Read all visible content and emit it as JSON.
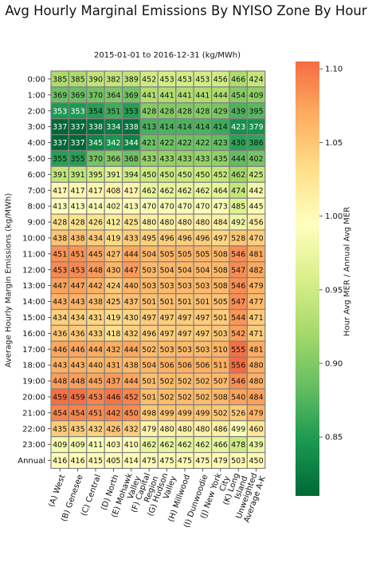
{
  "chart_data": {
    "type": "heatmap",
    "title": "Avg Hourly Marginal Emissions By NYISO Zone By Hour",
    "subtitle": "2015-01-01 to 2016-12-31 (kg/MWh)",
    "ylabel": "Average Hourly Margin Emissions (kg/MWh)",
    "colorbar_label": "Hour Avg MER / Annual Avg MER",
    "colorbar_ticks": [
      "0.85",
      "0.90",
      "0.95",
      "1.00",
      "1.05",
      "1.10"
    ],
    "colorbar_range": [
      0.81,
      1.105
    ],
    "colormap": [
      "#006837",
      "#1a9850",
      "#66bd63",
      "#a6d96a",
      "#d9ef8b",
      "#ffffbf",
      "#fee08b",
      "#fdae61",
      "#f46d43"
    ],
    "grid_color": "#808080",
    "x": [
      "(A) West",
      "(B) Genesee",
      "(C) Central",
      "(D) North",
      "(E) Mohawk Valley",
      "(F) Capital Region",
      "(G) Hudson Valley",
      "(H) Millwood",
      "(I) Dunwoodie",
      "(J) New York City",
      "(K) Long Island",
      "Unweighted Average A-K"
    ],
    "y": [
      "0:00",
      "1:00",
      "2:00",
      "3:00",
      "4:00",
      "5:00",
      "6:00",
      "7:00",
      "8:00",
      "9:00",
      "10:00",
      "11:00",
      "12:00",
      "13:00",
      "14:00",
      "15:00",
      "16:00",
      "17:00",
      "18:00",
      "19:00",
      "20:00",
      "21:00",
      "22:00",
      "23:00",
      "Annual"
    ],
    "values": [
      [
        385,
        385,
        390,
        382,
        389,
        452,
        453,
        453,
        453,
        456,
        466,
        424
      ],
      [
        369,
        369,
        370,
        364,
        369,
        441,
        441,
        441,
        441,
        444,
        454,
        409
      ],
      [
        353,
        353,
        354,
        351,
        353,
        428,
        428,
        428,
        428,
        429,
        439,
        395
      ],
      [
        337,
        337,
        338,
        334,
        338,
        413,
        414,
        414,
        414,
        414,
        423,
        379
      ],
      [
        337,
        337,
        345,
        342,
        344,
        421,
        422,
        422,
        422,
        423,
        430,
        386
      ],
      [
        355,
        355,
        370,
        366,
        368,
        433,
        433,
        433,
        433,
        435,
        444,
        402
      ],
      [
        391,
        391,
        395,
        391,
        394,
        450,
        450,
        450,
        450,
        452,
        462,
        425
      ],
      [
        417,
        417,
        417,
        408,
        417,
        462,
        462,
        462,
        462,
        464,
        474,
        442
      ],
      [
        413,
        413,
        414,
        402,
        413,
        470,
        470,
        470,
        470,
        473,
        485,
        445
      ],
      [
        428,
        428,
        426,
        412,
        425,
        480,
        480,
        480,
        480,
        484,
        492,
        456
      ],
      [
        438,
        438,
        434,
        419,
        433,
        495,
        496,
        496,
        496,
        497,
        528,
        470
      ],
      [
        451,
        451,
        445,
        427,
        444,
        504,
        505,
        505,
        505,
        508,
        546,
        481
      ],
      [
        453,
        453,
        448,
        430,
        447,
        503,
        504,
        504,
        504,
        508,
        547,
        482
      ],
      [
        447,
        447,
        442,
        424,
        440,
        503,
        503,
        503,
        503,
        508,
        546,
        479
      ],
      [
        443,
        443,
        438,
        425,
        437,
        501,
        501,
        501,
        501,
        505,
        547,
        477
      ],
      [
        434,
        434,
        431,
        419,
        430,
        497,
        497,
        497,
        497,
        501,
        544,
        471
      ],
      [
        436,
        436,
        433,
        418,
        432,
        496,
        497,
        497,
        497,
        503,
        542,
        471
      ],
      [
        446,
        446,
        444,
        432,
        444,
        502,
        503,
        503,
        503,
        510,
        555,
        481
      ],
      [
        443,
        443,
        440,
        431,
        438,
        504,
        506,
        506,
        506,
        511,
        556,
        480
      ],
      [
        448,
        448,
        445,
        437,
        444,
        501,
        502,
        502,
        502,
        507,
        546,
        480
      ],
      [
        459,
        459,
        453,
        446,
        452,
        501,
        502,
        502,
        502,
        508,
        540,
        484
      ],
      [
        454,
        454,
        451,
        442,
        450,
        498,
        499,
        499,
        499,
        502,
        526,
        479
      ],
      [
        435,
        435,
        432,
        426,
        432,
        479,
        480,
        480,
        480,
        486,
        499,
        460
      ],
      [
        409,
        409,
        411,
        403,
        410,
        462,
        462,
        462,
        462,
        466,
        478,
        439
      ],
      [
        416,
        416,
        415,
        405,
        414,
        475,
        475,
        475,
        475,
        479,
        503,
        450
      ]
    ]
  }
}
